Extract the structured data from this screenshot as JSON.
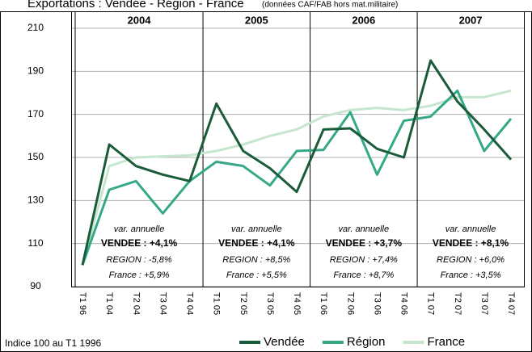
{
  "chart_data": {
    "type": "line",
    "title": "Exportations : Vendée - Région - France",
    "subtitle": "(données CAF/FAB hors mat.militaire)",
    "note": "Indice 100 au T1 1996",
    "categories": [
      "T1 96",
      "T1 04",
      "T2 04",
      "T3 04",
      "T4 04",
      "T1 05",
      "T2 05",
      "T3 05",
      "T4 05",
      "T1 06",
      "T2 06",
      "T3 06",
      "T4 06",
      "T1 07",
      "T2 07",
      "T3 07",
      "T4 07"
    ],
    "series": [
      {
        "name": "Vendée",
        "color": "#1a5c3a",
        "values": [
          100,
          156,
          146,
          142,
          139,
          175,
          153,
          145,
          134,
          163,
          163.5,
          154,
          150,
          195,
          176,
          163,
          149
        ]
      },
      {
        "name": "Région",
        "color": "#35a888",
        "values": [
          100,
          135,
          139,
          124,
          139,
          148,
          146,
          137,
          153,
          153.5,
          171,
          142,
          167,
          169,
          181,
          153,
          168
        ]
      },
      {
        "name": "France",
        "color": "#c6e6cf",
        "values": [
          100,
          146,
          150,
          150.5,
          151,
          153,
          156,
          160,
          163,
          169,
          172,
          173,
          172,
          174,
          178,
          178,
          181
        ]
      }
    ],
    "ylim": [
      90,
      210
    ],
    "yticks": [
      90,
      110,
      130,
      150,
      170,
      190,
      210
    ],
    "grid": true,
    "legend": "bottom",
    "periods": [
      {
        "year": "2004",
        "lines": [
          "var. annuelle",
          "VENDEE : +4,1%",
          "REGION : -5,8%",
          "France : +5,9%"
        ]
      },
      {
        "year": "2005",
        "lines": [
          "var. annuelle",
          "VENDEE : +4,1%",
          "REGION : +8,5%",
          "France : +5,5%"
        ]
      },
      {
        "year": "2006",
        "lines": [
          "var. annuelle",
          "VENDEE : +3,7%",
          "REGION : +7,4%",
          "France : +8,7%"
        ]
      },
      {
        "year": "2007",
        "lines": [
          "var. annuelle",
          "VENDEE : +8,1%",
          "REGION : +6,0%",
          "France : +3,5%"
        ]
      }
    ]
  }
}
